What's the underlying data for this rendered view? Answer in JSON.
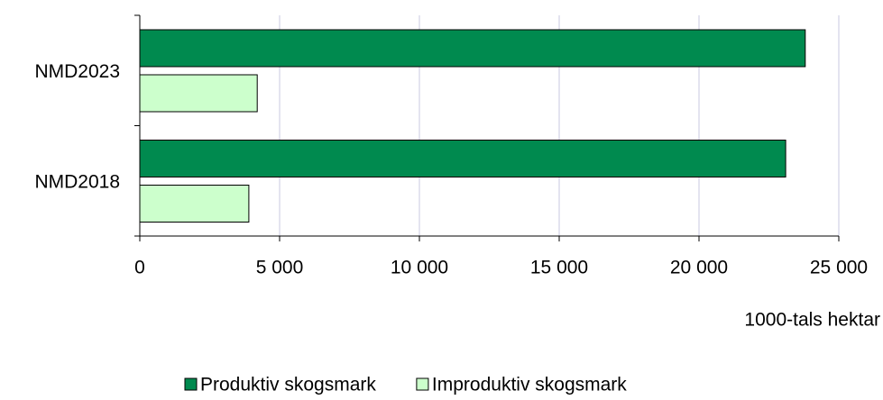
{
  "chart_data": {
    "type": "bar",
    "orientation": "horizontal",
    "categories": [
      "NMD2023",
      "NMD2018"
    ],
    "series": [
      {
        "name": "Produktiv skogsmark",
        "color": "#008a4f",
        "values": [
          23800,
          23100
        ]
      },
      {
        "name": "Improduktiv skogsmark",
        "color": "#ccffcc",
        "values": [
          4200,
          3900
        ]
      }
    ],
    "xlim": [
      0,
      25000
    ],
    "xticks": [
      0,
      {
        "value": 5000,
        "label": "5 000"
      },
      {
        "value": 10000,
        "label": "10 000"
      },
      {
        "value": 15000,
        "label": "15 000"
      },
      {
        "value": 20000,
        "label": "20 000"
      },
      {
        "value": 25000,
        "label": "25 000"
      }
    ],
    "xlabel": "1000-tals hektar",
    "grid": true,
    "legend": "bottom"
  }
}
